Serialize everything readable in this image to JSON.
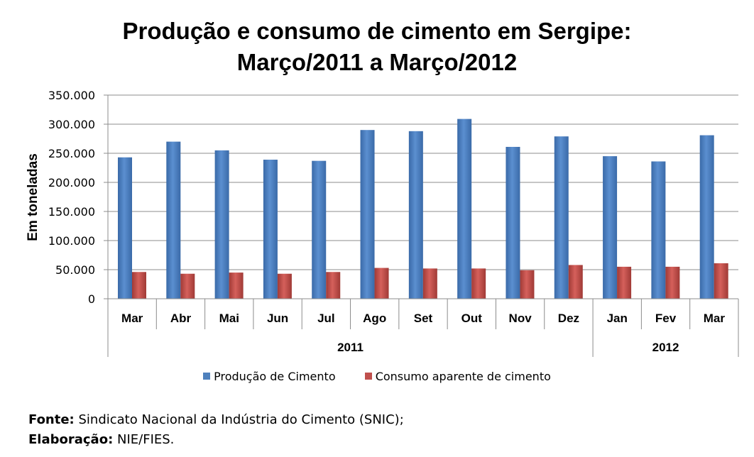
{
  "chart_data": {
    "type": "bar",
    "title": [
      "Produção e consumo de cimento em Sergipe:",
      "Março/2011 a Março/2012"
    ],
    "ylabel": "Em toneladas",
    "ylim": [
      0,
      350000
    ],
    "yticks": [
      "0",
      "50.000",
      "100.000",
      "150.000",
      "200.000",
      "250.000",
      "300.000",
      "350.000"
    ],
    "ytick_values": [
      0,
      50000,
      100000,
      150000,
      200000,
      250000,
      300000,
      350000
    ],
    "grid": true,
    "categories": [
      "Mar",
      "Abr",
      "Mai",
      "Jun",
      "Jul",
      "Ago",
      "Set",
      "Out",
      "Nov",
      "Dez",
      "Jan",
      "Fev",
      "Mar"
    ],
    "groups": [
      {
        "label": "2011",
        "count": 10
      },
      {
        "label": "2012",
        "count": 3
      }
    ],
    "series": [
      {
        "name": "Produção de Cimento",
        "color": "#4F81BD",
        "values": [
          243000,
          270000,
          255000,
          239000,
          237000,
          290000,
          288000,
          309000,
          261000,
          279000,
          245000,
          236000,
          281000
        ]
      },
      {
        "name": "Consumo aparente de cimento",
        "color": "#C0504D",
        "values": [
          46000,
          43000,
          45000,
          43000,
          46000,
          53000,
          52000,
          52000,
          49000,
          58000,
          55000,
          55000,
          61000
        ]
      }
    ],
    "legend_position": "bottom"
  },
  "footer": {
    "source_label": "Fonte:",
    "source_text": " Sindicato Nacional da Indústria do Cimento (SNIC);",
    "prep_label": "Elaboração:",
    "prep_text": " NIE/FIES."
  }
}
